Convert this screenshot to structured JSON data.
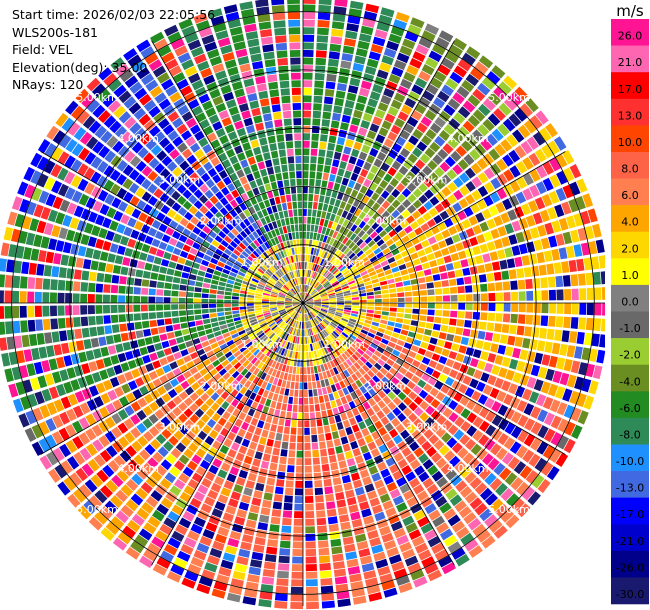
{
  "header": {
    "start_time": "Start time: 2026/02/03 22:05:56",
    "instrument": "WLS200s-181",
    "field": "Field: VEL",
    "elevation": "Elevation(deg): 35.00",
    "nrays": "NRays: 120"
  },
  "colorbar": {
    "unit_label": "m/s",
    "labels": [
      "26.0",
      "21.0",
      "17.0",
      "13.0",
      "10.0",
      "8.0",
      "6.0",
      "4.0",
      "2.0",
      "1.0",
      "0.0",
      "-1.0",
      "-2.0",
      "-4.0",
      "-6.0",
      "-8.0",
      "-10.0",
      "-13.0",
      "-17.0",
      "-21.0",
      "-26.0",
      "-30.0"
    ],
    "colors": [
      "#ff1493",
      "#ff66b2",
      "#ff0000",
      "#ff3030",
      "#ff4500",
      "#ff6347",
      "#ff7f50",
      "#ffa500",
      "#ffd700",
      "#ffff00",
      "#808080",
      "#696969",
      "#9acd32",
      "#6b8e23",
      "#228b22",
      "#2e8b57",
      "#1e90ff",
      "#4169e1",
      "#0000ff",
      "#0000cd",
      "#00008b",
      "#191970"
    ]
  },
  "chart_data": {
    "type": "heatmap",
    "subtype": "ppi-polar",
    "field": "VEL",
    "unit": "m/s",
    "nrays": 120,
    "elevation_deg": 35.0,
    "max_range_km": 5.2,
    "range_ring_labels": [
      "1.00km",
      "2.00km",
      "3.00km",
      "4.00km",
      "5.00km"
    ],
    "range_ring_km": [
      1,
      2,
      3,
      4,
      5
    ],
    "color_levels": [
      30.0,
      26.0,
      21.0,
      17.0,
      13.0,
      10.0,
      8.0,
      6.0,
      4.0,
      2.0,
      1.0,
      0.0,
      -1.0,
      -2.0,
      -4.0,
      -6.0,
      -8.0,
      -10.0,
      -13.0,
      -17.0,
      -21.0,
      -26.0,
      -30.0
    ],
    "level_colors": [
      "#ff1493",
      "#ff66b2",
      "#ff0000",
      "#ff3030",
      "#ff4500",
      "#ff6347",
      "#ff7f50",
      "#ffa500",
      "#ffd700",
      "#ffff00",
      "#808080",
      "#696969",
      "#9acd32",
      "#6b8e23",
      "#228b22",
      "#2e8b57",
      "#1e90ff",
      "#4169e1",
      "#0000ff",
      "#0000cd",
      "#00008b",
      "#191970"
    ],
    "sector_trends": [
      {
        "azimuth_range_deg": [
          0,
          20
        ],
        "dominant_mps": -6.0
      },
      {
        "azimuth_range_deg": [
          20,
          50
        ],
        "dominant_mps": -2.0
      },
      {
        "azimuth_range_deg": [
          50,
          110
        ],
        "dominant_mps": 4.0
      },
      {
        "azimuth_range_deg": [
          110,
          170
        ],
        "dominant_mps": 8.0
      },
      {
        "azimuth_range_deg": [
          170,
          210
        ],
        "dominant_mps": 8.0
      },
      {
        "azimuth_range_deg": [
          210,
          250
        ],
        "dominant_mps": 6.0
      },
      {
        "azimuth_range_deg": [
          250,
          290
        ],
        "dominant_mps": -6.0
      },
      {
        "azimuth_range_deg": [
          290,
          330
        ],
        "dominant_mps": -13.0
      },
      {
        "azimuth_range_deg": [
          330,
          360
        ],
        "dominant_mps": -6.0
      }
    ]
  }
}
